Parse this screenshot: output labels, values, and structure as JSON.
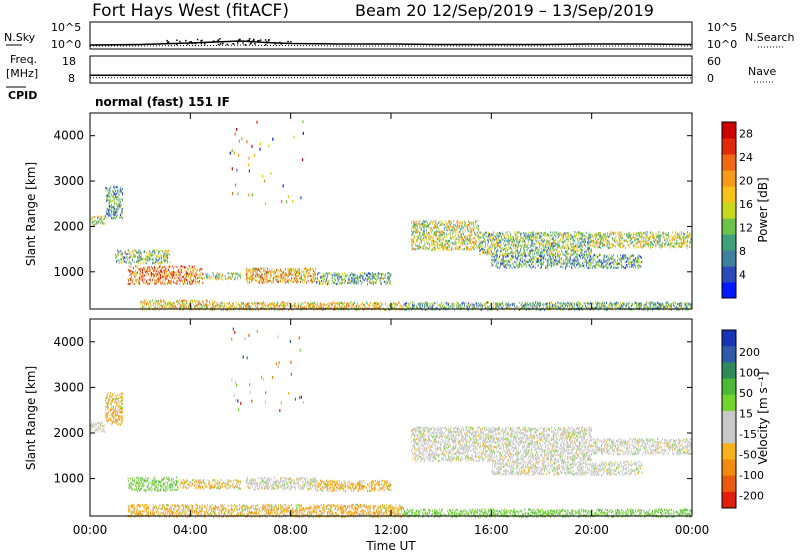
{
  "header": {
    "station": "Fort Hays West (fitACF)",
    "beam_date": "Beam 20  12/Sep/2019 – 13/Sep/2019"
  },
  "mode_label": "normal (fast) 151 IF",
  "strip_labels": {
    "nsky": "N.Sky",
    "freq_line1": "Freq.",
    "freq_line2": "[MHz]",
    "cpid": "CPID",
    "nsearch": "N.Search",
    "nave": "Nave"
  },
  "chart_data": [
    {
      "type": "line",
      "panel": "noise",
      "series": [
        {
          "name": "N.Sky",
          "style": "solid"
        },
        {
          "name": "N.Search",
          "style": "dotted"
        }
      ],
      "y_left_ticks": [
        "10^5",
        "10^0"
      ],
      "y_right_ticks": [
        "10^5",
        "10^0"
      ],
      "x": [
        0,
        2,
        4,
        5,
        6,
        7,
        8,
        10,
        12,
        14,
        16,
        18,
        20,
        22,
        24
      ],
      "nsky_log10": [
        0.6,
        0.7,
        1.0,
        1.2,
        1.4,
        1.1,
        0.9,
        0.8,
        0.8,
        0.7,
        0.7,
        0.7,
        0.8,
        0.8,
        0.7
      ],
      "nsearch_log10": [
        0.4,
        0.4,
        0.5,
        0.5,
        0.6,
        0.5,
        0.5,
        0.4,
        0.4,
        0.4,
        0.4,
        0.4,
        0.4,
        0.4,
        0.4
      ]
    },
    {
      "type": "line",
      "panel": "frequency",
      "series": [
        {
          "name": "Freq.",
          "style": "solid"
        },
        {
          "name": "Nave",
          "style": "dotted"
        }
      ],
      "y_left_ticks": [
        "18",
        "8"
      ],
      "y_right_ticks": [
        "60",
        "0"
      ],
      "freq_mhz": 12,
      "nave": 15
    },
    {
      "type": "heatmap",
      "panel": "power",
      "ylabel": "Slant Range [km]",
      "ylim": [
        180,
        4500
      ],
      "xlim": [
        0,
        24
      ],
      "y_ticks": [
        1000,
        2000,
        3000,
        4000
      ],
      "colorbar": {
        "label": "Power [dB]",
        "range": [
          0,
          30
        ],
        "ticks": [
          4,
          8,
          12,
          16,
          20,
          24,
          28
        ],
        "colors": [
          "#0018ff",
          "#2b49b8",
          "#3f7fa0",
          "#3fa07a",
          "#6cc24a",
          "#c8d81e",
          "#f7c21a",
          "#f59a1a",
          "#f06a12",
          "#e02a0a",
          "#cc0000"
        ]
      },
      "echo_regions": [
        {
          "t": [
            0.0,
            0.6
          ],
          "r": [
            2050,
            2250
          ],
          "level": 0.5
        },
        {
          "t": [
            0.6,
            1.3
          ],
          "r": [
            2200,
            2900
          ],
          "level": 0.3
        },
        {
          "t": [
            1.0,
            3.2
          ],
          "r": [
            1200,
            1500
          ],
          "level": 0.4
        },
        {
          "t": [
            1.5,
            4.5
          ],
          "r": [
            750,
            1150
          ],
          "level": 0.75
        },
        {
          "t": [
            4.5,
            6.0
          ],
          "r": [
            850,
            1000
          ],
          "level": 0.5
        },
        {
          "t": [
            6.2,
            9.0
          ],
          "r": [
            780,
            1100
          ],
          "level": 0.65
        },
        {
          "t": [
            9.0,
            12.0
          ],
          "r": [
            750,
            1000
          ],
          "level": 0.35
        },
        {
          "t": [
            2.0,
            5.0
          ],
          "r": [
            180,
            400
          ],
          "level": 0.55
        },
        {
          "t": [
            5.0,
            12.5
          ],
          "r": [
            180,
            350
          ],
          "level": 0.6
        },
        {
          "t": [
            12.8,
            15.5
          ],
          "r": [
            1500,
            2150
          ],
          "level": 0.5
        },
        {
          "t": [
            15.5,
            20.0
          ],
          "r": [
            1400,
            1900
          ],
          "level": 0.4
        },
        {
          "t": [
            16.0,
            22.0
          ],
          "r": [
            1100,
            1400
          ],
          "level": 0.3
        },
        {
          "t": [
            20.0,
            24.0
          ],
          "r": [
            1550,
            1900
          ],
          "level": 0.5
        },
        {
          "t": [
            12.5,
            24.0
          ],
          "r": [
            180,
            350
          ],
          "level": 0.35
        }
      ]
    },
    {
      "type": "heatmap",
      "panel": "velocity",
      "xlabel": "Time UT",
      "ylabel": "Slant Range [km]",
      "ylim": [
        180,
        4500
      ],
      "xlim": [
        0,
        24
      ],
      "x_ticks": [
        "00:00",
        "04:00",
        "08:00",
        "12:00",
        "16:00",
        "20:00",
        "00:00"
      ],
      "y_ticks": [
        1000,
        2000,
        3000,
        4000
      ],
      "colorbar": {
        "label": "Velocity [m s⁻¹]",
        "ticks": [
          "200",
          "100",
          "50",
          "15",
          "-15",
          "-50",
          "-100",
          "-200"
        ],
        "colors": [
          "#1832b8",
          "#2f5aa8",
          "#2e8a5a",
          "#4cb838",
          "#73d42e",
          "#c8c8c8",
          "#c8c8c8",
          "#f7b21a",
          "#f28a12",
          "#ec5a0e",
          "#e0200a"
        ]
      },
      "echo_regions": [
        {
          "t": [
            0.0,
            0.6
          ],
          "r": [
            2050,
            2250
          ],
          "level": "gray"
        },
        {
          "t": [
            0.6,
            1.3
          ],
          "r": [
            2200,
            2900
          ],
          "level": "neg"
        },
        {
          "t": [
            1.5,
            3.5
          ],
          "r": [
            750,
            1050
          ],
          "level": "pos"
        },
        {
          "t": [
            3.5,
            6.0
          ],
          "r": [
            800,
            1000
          ],
          "level": "neg"
        },
        {
          "t": [
            6.2,
            9.0
          ],
          "r": [
            780,
            1050
          ],
          "level": "gray"
        },
        {
          "t": [
            9.0,
            12.0
          ],
          "r": [
            750,
            980
          ],
          "level": "neg"
        },
        {
          "t": [
            1.5,
            12.5
          ],
          "r": [
            180,
            450
          ],
          "level": "neg"
        },
        {
          "t": [
            12.8,
            20.0
          ],
          "r": [
            1400,
            2150
          ],
          "level": "gray"
        },
        {
          "t": [
            16.0,
            22.0
          ],
          "r": [
            1100,
            1400
          ],
          "level": "gray"
        },
        {
          "t": [
            20.0,
            24.0
          ],
          "r": [
            1550,
            1900
          ],
          "level": "gray"
        },
        {
          "t": [
            12.5,
            24.0
          ],
          "r": [
            180,
            350
          ],
          "level": "pos"
        }
      ]
    }
  ]
}
